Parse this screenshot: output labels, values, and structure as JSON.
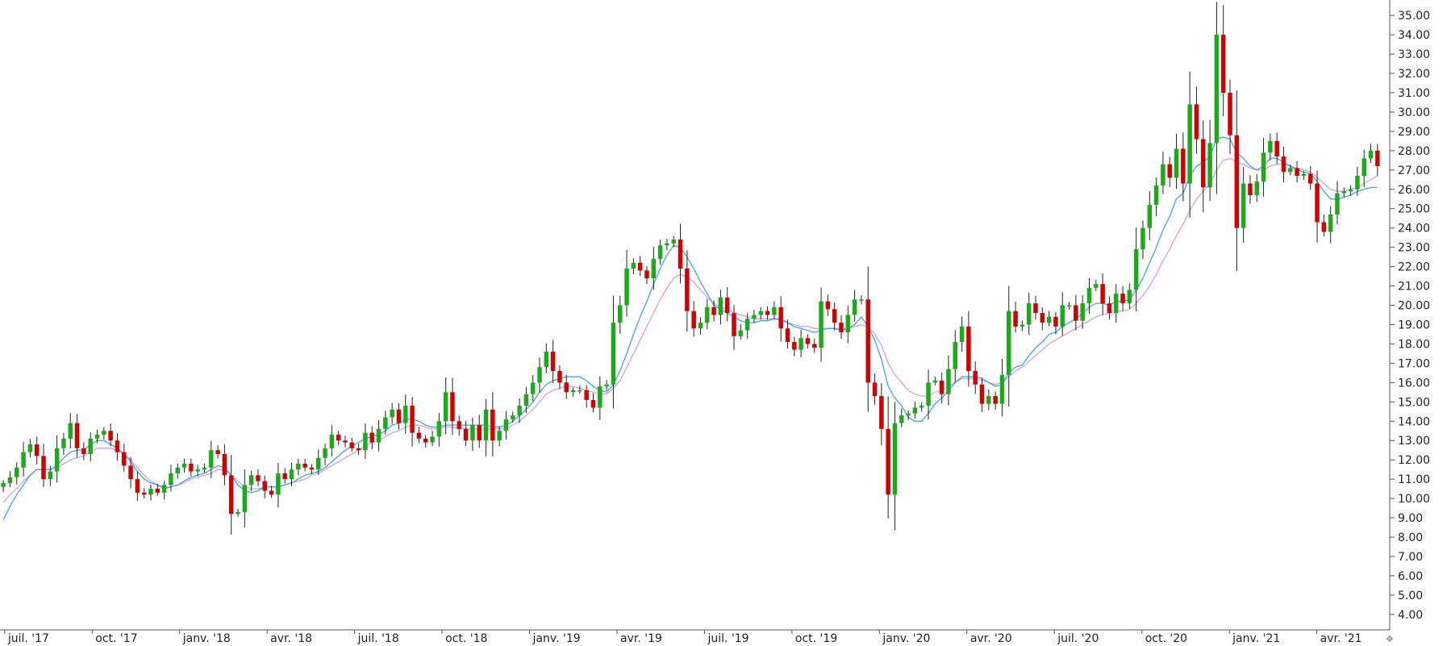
{
  "chart_data": {
    "type": "candlestick",
    "interval": "weekly",
    "ylim": [
      3.2,
      35.8
    ],
    "y_ticks": [
      "4.00",
      "5.00",
      "6.00",
      "7.00",
      "8.00",
      "9.00",
      "10.00",
      "11.00",
      "12.00",
      "13.00",
      "14.00",
      "15.00",
      "16.00",
      "17.00",
      "18.00",
      "19.00",
      "20.00",
      "21.00",
      "22.00",
      "23.00",
      "24.00",
      "25.00",
      "26.00",
      "27.00",
      "28.00",
      "29.00",
      "30.00",
      "31.00",
      "32.00",
      "33.00",
      "34.00",
      "35.00"
    ],
    "x_ticks": [
      "juil. '17",
      "oct. '17",
      "janv. '18",
      "avr. '18",
      "juil. '18",
      "oct. '18",
      "janv. '19",
      "avr. '19",
      "juil. '19",
      "oct. '19",
      "janv. '20",
      "avr. '20",
      "juil. '20",
      "oct. '20",
      "janv. '21",
      "avr. '21"
    ],
    "grid": false,
    "colors": {
      "up": "#1aaa1a",
      "down": "#d40000",
      "wick": "#222222",
      "ma_fast": "#3ea6e6",
      "ma_slow": "#d39ee6",
      "axis": "#555555"
    },
    "closes": [
      10.8,
      11.1,
      11.6,
      12.4,
      12.8,
      12.2,
      11.0,
      11.4,
      12.6,
      13.1,
      13.9,
      12.6,
      12.3,
      13.1,
      13.3,
      13.5,
      13.0,
      12.4,
      11.7,
      11.0,
      10.3,
      10.2,
      10.5,
      10.3,
      10.7,
      11.3,
      11.6,
      11.8,
      11.4,
      11.5,
      11.6,
      12.5,
      12.3,
      11.2,
      9.2,
      9.3,
      10.7,
      11.2,
      10.9,
      10.4,
      10.2,
      11.3,
      11.0,
      11.5,
      11.8,
      11.6,
      11.5,
      12.1,
      12.6,
      13.3,
      13.0,
      12.9,
      12.6,
      12.5,
      13.4,
      12.9,
      13.6,
      14.2,
      14.6,
      13.9,
      14.8,
      13.4,
      13.1,
      12.9,
      13.2,
      14.0,
      15.5,
      14.0,
      13.6,
      13.0,
      13.8,
      13.0,
      14.6,
      13.0,
      13.5,
      14.1,
      14.3,
      14.8,
      15.4,
      16.0,
      16.8,
      17.6,
      16.6,
      16.0,
      15.5,
      15.6,
      15.6,
      15.1,
      14.7,
      15.8,
      15.9,
      19.1,
      20.0,
      21.9,
      22.2,
      21.8,
      21.4,
      22.4,
      23.1,
      23.2,
      23.4,
      21.9,
      19.7,
      18.8,
      19.1,
      19.9,
      19.5,
      20.4,
      19.6,
      18.4,
      18.7,
      19.3,
      19.5,
      19.7,
      19.5,
      19.9,
      18.8,
      18.1,
      17.7,
      18.3,
      18.0,
      17.8,
      20.2,
      19.8,
      19.1,
      18.6,
      19.5,
      20.3,
      20.3,
      16.0,
      15.3,
      13.6,
      10.2,
      13.9,
      14.3,
      14.4,
      14.7,
      14.8,
      16.0,
      16.1,
      15.4,
      16.7,
      18.1,
      18.9,
      16.6,
      15.9,
      14.9,
      15.3,
      14.9,
      16.4,
      19.7,
      18.9,
      19.0,
      20.1,
      19.6,
      19.1,
      19.4,
      18.9,
      20.0,
      20.0,
      19.2,
      20.1,
      20.9,
      21.1,
      20.1,
      19.6,
      20.6,
      20.1,
      20.8,
      22.9,
      24.0,
      25.2,
      26.2,
      27.3,
      26.6,
      28.1,
      26.3,
      30.4,
      28.6,
      26.1,
      28.4,
      34.0,
      31.0,
      28.8,
      24.0,
      26.3,
      25.7,
      26.4,
      27.9,
      28.5,
      27.7,
      26.9,
      27.1,
      26.7,
      26.8,
      26.3,
      24.3,
      23.8,
      24.7,
      25.8,
      25.9,
      26.0,
      26.7,
      27.6,
      28.0,
      27.2
    ],
    "ma_fast": [
      8.9,
      9.6,
      10.2,
      10.7,
      11.2,
      11.5,
      11.5,
      11.5,
      11.7,
      12.1,
      12.4,
      12.5,
      12.5,
      12.8,
      13.0,
      13.0,
      12.8,
      12.6,
      12.3,
      11.9,
      11.4,
      11.0,
      10.8,
      10.7,
      10.5,
      10.6,
      10.7,
      10.9,
      11.1,
      11.2,
      11.3,
      11.5,
      11.7,
      11.6,
      11.2,
      10.7,
      10.4,
      10.3,
      10.4,
      10.6,
      10.6,
      10.6,
      10.7,
      10.8,
      11.0,
      11.2,
      11.3,
      11.4,
      11.6,
      11.9,
      12.2,
      12.5,
      12.7,
      12.9,
      13.1,
      13.2,
      13.3,
      13.5,
      13.8,
      13.9,
      14.1,
      14.1,
      14.0,
      13.8,
      13.7,
      13.7,
      13.8,
      13.8,
      13.8,
      13.8,
      13.8,
      13.8,
      13.8,
      13.7,
      13.7,
      13.8,
      14.0,
      14.3,
      14.6,
      15.0,
      15.5,
      15.9,
      16.1,
      16.2,
      16.3,
      16.3,
      16.3,
      16.1,
      15.8,
      15.6,
      15.5,
      15.9,
      16.6,
      17.5,
      18.5,
      19.4,
      20.2,
      21.1,
      21.9,
      22.6,
      23.1,
      23.0,
      22.5,
      21.9,
      21.2,
      20.6,
      20.0,
      19.8,
      19.6,
      19.4,
      19.2,
      19.1,
      19.1,
      19.2,
      19.2,
      19.3,
      19.3,
      19.1,
      18.9,
      18.8,
      18.7,
      18.6,
      18.7,
      18.8,
      18.8,
      18.7,
      18.8,
      19.0,
      19.4,
      18.9,
      18.2,
      17.2,
      15.8,
      15.2,
      14.8,
      14.2,
      14.0,
      14.0,
      14.4,
      14.9,
      15.2,
      15.6,
      16.0,
      16.3,
      16.3,
      16.3,
      16.2,
      16.0,
      15.8,
      15.9,
      16.5,
      16.8,
      16.9,
      17.4,
      17.8,
      18.1,
      18.5,
      18.6,
      18.9,
      19.1,
      19.3,
      19.6,
      19.9,
      20.1,
      20.1,
      20.0,
      20.2,
      20.2,
      20.3,
      20.8,
      21.4,
      22.2,
      23.0,
      23.9,
      24.6,
      25.5,
      25.8,
      26.7,
      27.2,
      27.4,
      27.7,
      28.6,
      28.7,
      28.6,
      27.9,
      27.6,
      27.2,
      27.0,
      27.2,
      27.6,
      27.6,
      27.4,
      27.2,
      27.0,
      26.9,
      26.8,
      26.4,
      25.9,
      25.5,
      25.5,
      25.6,
      25.7,
      25.9,
      26.0,
      26.1,
      26.1
    ],
    "ma_slow": [
      9.8,
      10.2,
      10.5,
      10.9,
      11.2,
      11.5,
      11.5,
      11.5,
      11.6,
      11.8,
      12.0,
      12.1,
      12.2,
      12.4,
      12.6,
      12.6,
      12.6,
      12.5,
      12.3,
      12.0,
      11.6,
      11.2,
      10.9,
      10.7,
      10.6,
      10.6,
      10.7,
      10.8,
      11.0,
      11.1,
      11.2,
      11.3,
      11.5,
      11.5,
      11.2,
      10.9,
      10.6,
      10.5,
      10.5,
      10.6,
      10.6,
      10.6,
      10.7,
      10.8,
      10.9,
      11.0,
      11.2,
      11.3,
      11.5,
      11.7,
      11.9,
      12.1,
      12.3,
      12.5,
      12.7,
      12.9,
      13.0,
      13.2,
      13.4,
      13.5,
      13.7,
      13.8,
      13.8,
      13.7,
      13.6,
      13.6,
      13.7,
      13.7,
      13.6,
      13.6,
      13.6,
      13.6,
      13.6,
      13.6,
      13.6,
      13.6,
      13.8,
      14.0,
      14.3,
      14.6,
      15.0,
      15.4,
      15.6,
      15.7,
      15.8,
      15.8,
      15.7,
      15.6,
      15.5,
      15.4,
      15.4,
      15.7,
      16.1,
      16.8,
      17.5,
      18.2,
      18.9,
      19.6,
      20.3,
      20.9,
      21.4,
      21.6,
      21.5,
      21.2,
      20.8,
      20.4,
      20.1,
      19.9,
      19.8,
      19.6,
      19.5,
      19.4,
      19.3,
      19.3,
      19.3,
      19.3,
      19.2,
      19.1,
      19.0,
      18.9,
      18.9,
      18.8,
      18.8,
      18.8,
      18.8,
      18.8,
      18.8,
      18.9,
      19.0,
      18.9,
      18.5,
      17.9,
      17.0,
      16.4,
      16.0,
      15.6,
      15.4,
      15.3,
      15.3,
      15.5,
      15.6,
      15.8,
      16.0,
      16.2,
      16.2,
      16.2,
      16.1,
      16.0,
      15.9,
      16.0,
      16.3,
      16.6,
      16.8,
      17.1,
      17.4,
      17.7,
      18.0,
      18.2,
      18.4,
      18.6,
      18.8,
      19.0,
      19.2,
      19.4,
      19.5,
      19.6,
      19.7,
      19.7,
      19.8,
      20.1,
      20.5,
      21.0,
      21.6,
      22.3,
      22.9,
      23.6,
      24.2,
      24.9,
      25.5,
      25.9,
      26.3,
      27.0,
      27.5,
      27.6,
      27.4,
      27.3,
      27.1,
      27.0,
      27.0,
      27.2,
      27.3,
      27.3,
      27.2,
      27.1,
      27.0,
      26.9,
      26.6,
      26.3,
      26.0,
      25.9,
      25.9,
      26.0,
      26.1,
      26.3,
      26.5,
      26.7
    ]
  },
  "controls": {
    "corner_icon": "move-icon",
    "corner_glyph": "✥"
  }
}
